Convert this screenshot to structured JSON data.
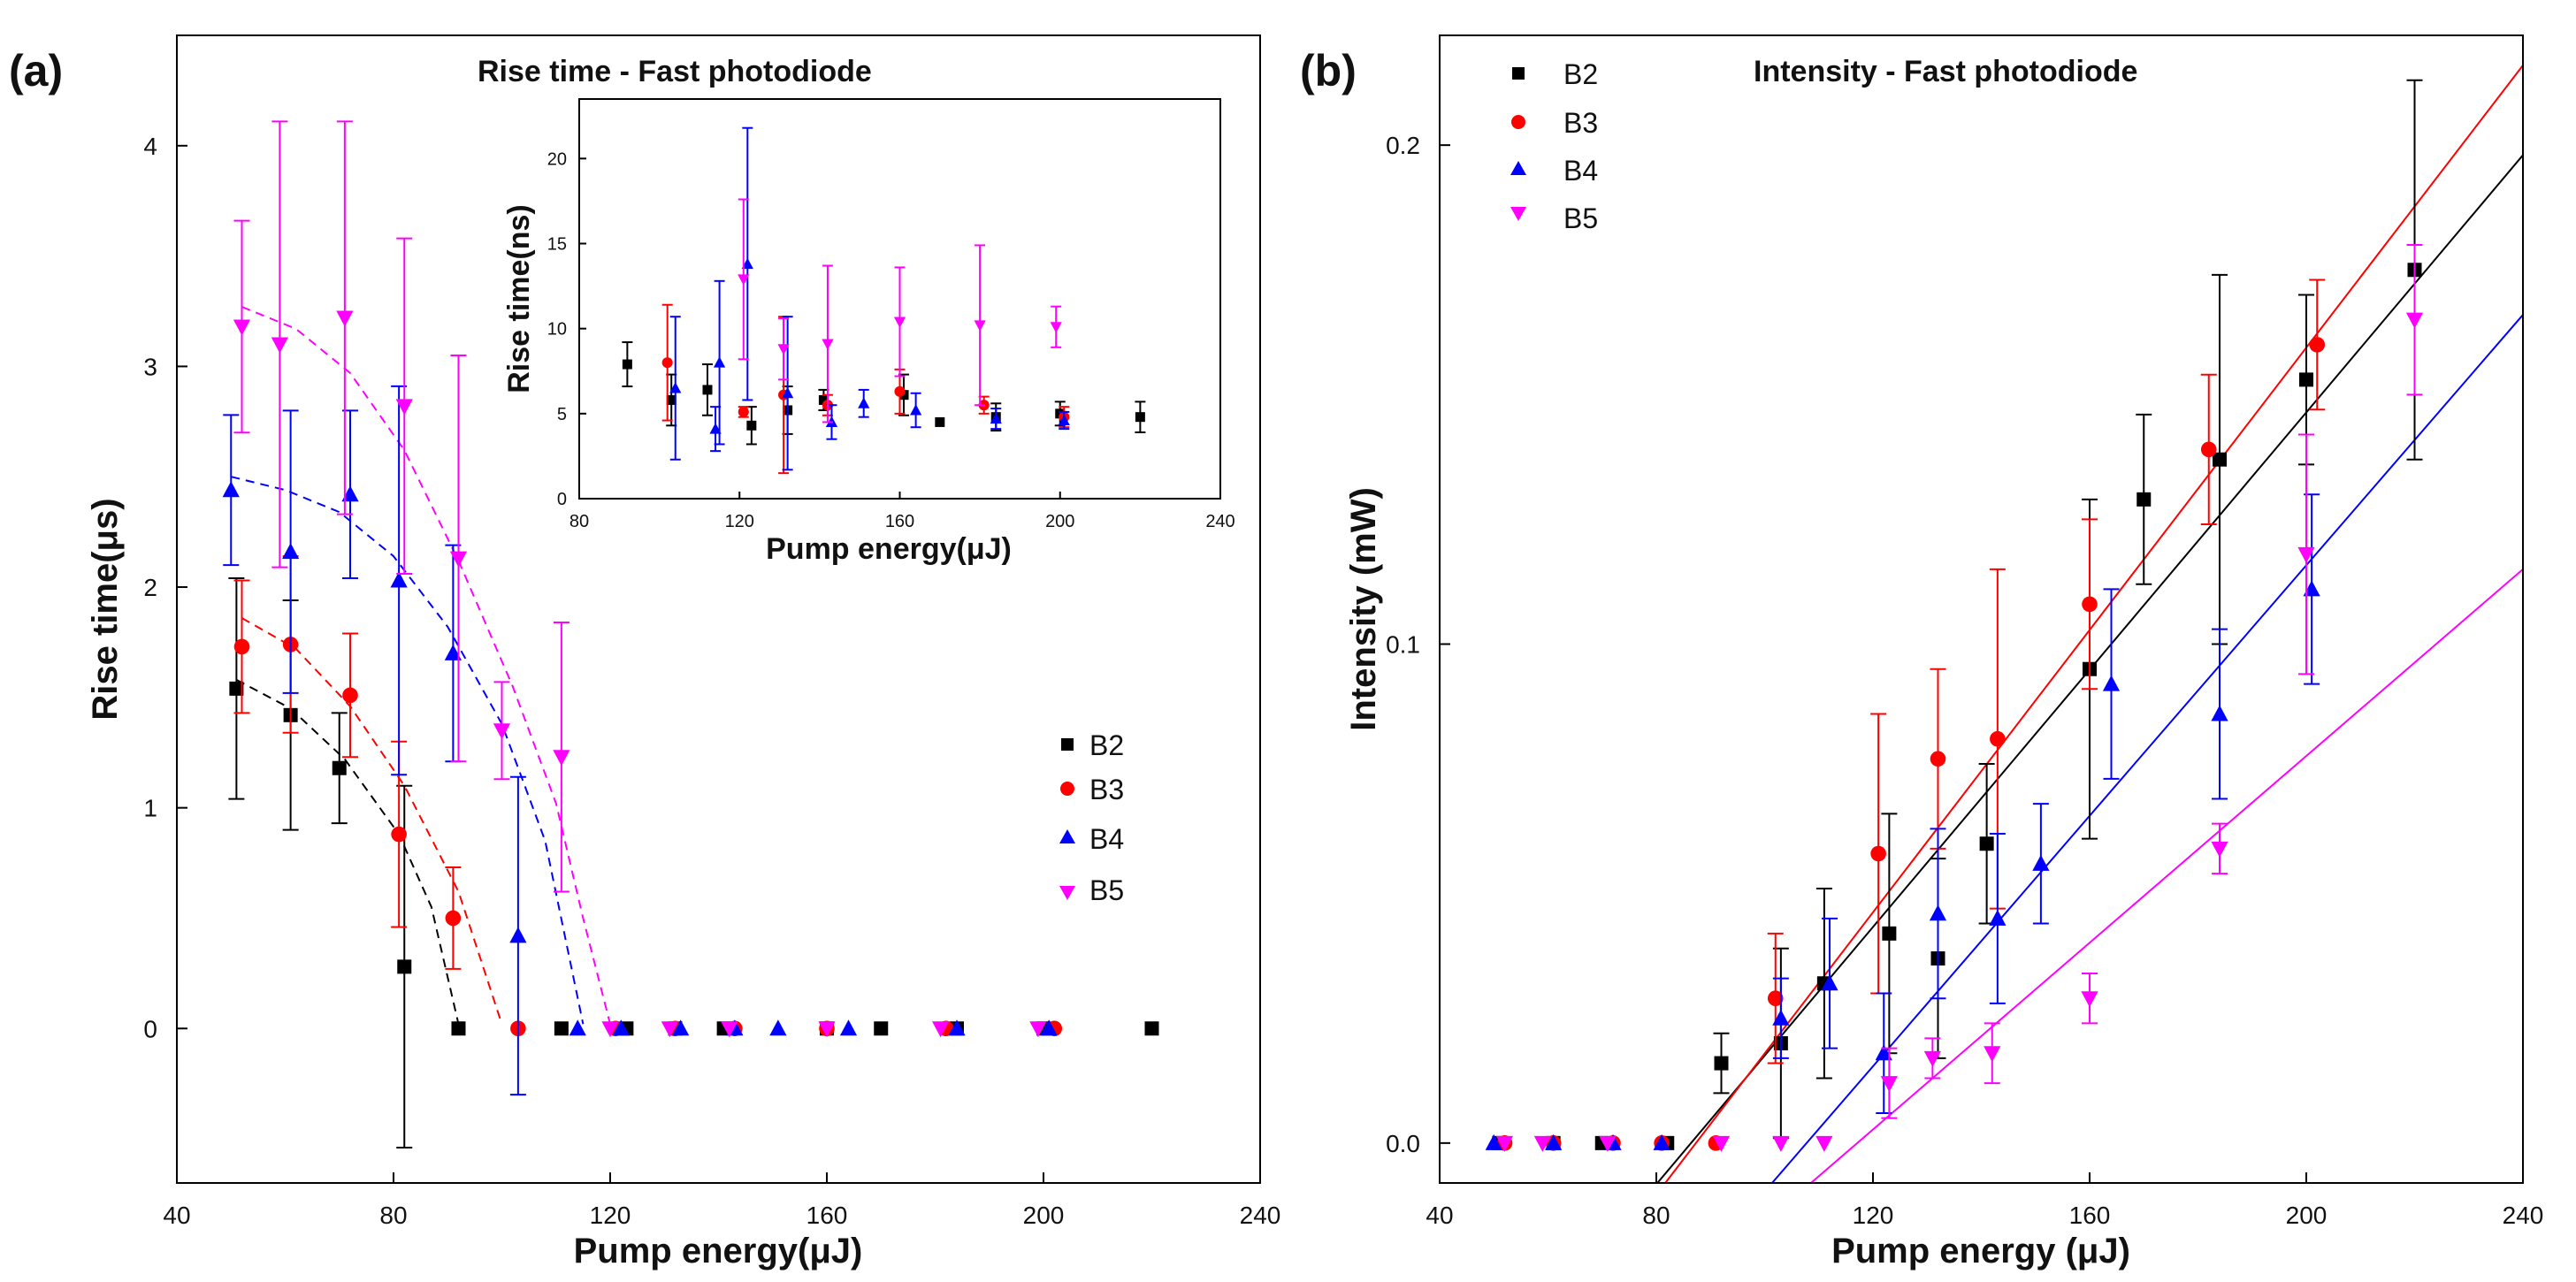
{
  "panels": {
    "a": {
      "label": "(a)"
    },
    "b": {
      "label": "(b)"
    }
  },
  "chart_data": [
    {
      "id": "a",
      "type": "scatter",
      "title": "Rise time - Fast photodiode",
      "xlabel": "Pump energy(μJ)",
      "ylabel": "Rise time(μs)",
      "xlim": [
        40,
        240
      ],
      "ylim": [
        -0.7,
        4.5
      ],
      "xticks": [
        40,
        80,
        120,
        160,
        200,
        240
      ],
      "yticks": [
        0,
        1,
        2,
        3,
        4
      ],
      "legend_position": "center-right",
      "series": [
        {
          "name": "B2",
          "color": "#000000",
          "marker": "square",
          "points": [
            [
              51,
              1.54,
              0.5
            ],
            [
              61,
              1.42,
              0.52
            ],
            [
              70,
              1.18,
              0.25
            ],
            [
              82,
              0.28,
              0.82
            ],
            [
              92,
              0,
              0
            ],
            [
              111,
              0,
              0
            ],
            [
              123,
              0,
              0
            ],
            [
              132,
              0,
              0
            ],
            [
              141,
              0,
              0
            ],
            [
              160,
              0,
              0
            ],
            [
              170,
              0,
              0
            ],
            [
              184,
              0,
              0
            ],
            [
              200,
              0,
              0
            ],
            [
              220,
              0,
              0
            ]
          ]
        },
        {
          "name": "B3",
          "color": "#ff0000",
          "marker": "circle",
          "points": [
            [
              52,
              1.73,
              0.3
            ],
            [
              61,
              1.74,
              0.4
            ],
            [
              72,
              1.51,
              0.28
            ],
            [
              81,
              0.88,
              0.42
            ],
            [
              91,
              0.5,
              0.23
            ],
            [
              103,
              0,
              0
            ],
            [
              121,
              0,
              0
            ],
            [
              132,
              0,
              0
            ],
            [
              143,
              0,
              0
            ],
            [
              160,
              0,
              0
            ],
            [
              182,
              0,
              0
            ],
            [
              202,
              0,
              0
            ]
          ]
        },
        {
          "name": "B4",
          "color": "#0000ff",
          "marker": "triangle-up",
          "points": [
            [
              50,
              2.44,
              0.34
            ],
            [
              61,
              2.16,
              0.64
            ],
            [
              72,
              2.42,
              0.38
            ],
            [
              81,
              2.03,
              0.88
            ],
            [
              91,
              1.7,
              0.49
            ],
            [
              103,
              0.42,
              0.72
            ],
            [
              114,
              0,
              0
            ],
            [
              122,
              0,
              0
            ],
            [
              133,
              0,
              0
            ],
            [
              143,
              0,
              0
            ],
            [
              151,
              0,
              0
            ],
            [
              164,
              0,
              0
            ],
            [
              184,
              0,
              0
            ],
            [
              201,
              0,
              0
            ]
          ]
        },
        {
          "name": "B5",
          "color": "#ff00ff",
          "marker": "triangle-down",
          "points": [
            [
              52,
              3.18,
              0.48
            ],
            [
              59,
              3.1,
              1.01
            ],
            [
              71,
              3.22,
              0.89
            ],
            [
              82,
              2.82,
              0.76
            ],
            [
              92,
              2.13,
              0.92
            ],
            [
              100,
              1.35,
              0.22
            ],
            [
              111,
              1.23,
              0.61
            ],
            [
              120,
              0,
              0
            ],
            [
              131,
              0,
              0
            ],
            [
              142,
              0,
              0
            ],
            [
              160,
              0,
              0
            ],
            [
              181,
              0,
              0
            ],
            [
              199,
              0,
              0
            ]
          ]
        }
      ],
      "fit_curves": [
        {
          "series": "B2",
          "points": [
            [
              51,
              1.58
            ],
            [
              61,
              1.45
            ],
            [
              71,
              1.22
            ],
            [
              81,
              0.88
            ],
            [
              87,
              0.55
            ],
            [
              92,
              0.02
            ]
          ]
        },
        {
          "series": "B3",
          "points": [
            [
              52,
              1.86
            ],
            [
              62,
              1.72
            ],
            [
              72,
              1.46
            ],
            [
              82,
              1.1
            ],
            [
              92,
              0.62
            ],
            [
              100,
              0.02
            ]
          ]
        },
        {
          "series": "B4",
          "points": [
            [
              50,
              2.5
            ],
            [
              60,
              2.44
            ],
            [
              70,
              2.34
            ],
            [
              80,
              2.14
            ],
            [
              90,
              1.82
            ],
            [
              100,
              1.38
            ],
            [
              108,
              0.85
            ],
            [
              115,
              0.02
            ]
          ]
        },
        {
          "series": "B5",
          "points": [
            [
              52,
              3.27
            ],
            [
              62,
              3.17
            ],
            [
              72,
              2.97
            ],
            [
              82,
              2.62
            ],
            [
              92,
              2.12
            ],
            [
              102,
              1.55
            ],
            [
              110,
              1.02
            ],
            [
              115,
              0.5
            ],
            [
              120,
              0.02
            ]
          ]
        }
      ],
      "inset": {
        "xlabel": "Pump energy(μJ)",
        "ylabel": "Rise time(ns)",
        "xlim": [
          80,
          240
        ],
        "ylim": [
          0,
          23.5
        ],
        "xticks": [
          80,
          120,
          160,
          200,
          240
        ],
        "yticks": [
          0,
          5,
          10,
          15,
          20
        ],
        "series": [
          {
            "name": "B2",
            "color": "#000000",
            "marker": "square",
            "points": [
              [
                92,
                7.9,
                1.3
              ],
              [
                103,
                5.8,
                1.5
              ],
              [
                112,
                6.4,
                1.5
              ],
              [
                123,
                4.3,
                1.1
              ],
              [
                132,
                5.2,
                1.4
              ],
              [
                141,
                5.8,
                0.6
              ],
              [
                161,
                6.1,
                1.2
              ],
              [
                170,
                4.5,
                0
              ],
              [
                184,
                4.8,
                0.8
              ],
              [
                200,
                5.0,
                0.7
              ],
              [
                220,
                4.8,
                0.9
              ]
            ]
          },
          {
            "name": "B3",
            "color": "#ff0000",
            "marker": "circle",
            "points": [
              [
                102,
                8.0,
                3.4
              ],
              [
                121,
                5.1,
                0.3
              ],
              [
                131,
                6.1,
                4.6
              ],
              [
                142,
                5.5,
                0.6
              ],
              [
                160,
                6.3,
                1.3
              ],
              [
                181,
                5.5,
                0.5
              ],
              [
                201,
                4.8,
                0.6
              ]
            ]
          },
          {
            "name": "B4",
            "color": "#0000ff",
            "marker": "triangle-up",
            "points": [
              [
                104,
                6.5,
                4.2
              ],
              [
                114,
                4.1,
                1.3
              ],
              [
                115,
                8.0,
                4.8
              ],
              [
                122,
                13.8,
                8.0
              ],
              [
                132,
                6.2,
                4.5
              ],
              [
                143,
                4.5,
                1.0
              ],
              [
                151,
                5.6,
                0.8
              ],
              [
                164,
                5.2,
                1.0
              ],
              [
                184,
                4.7,
                0.6
              ],
              [
                201,
                4.6,
                0.5
              ]
            ]
          },
          {
            "name": "B5",
            "color": "#ff00ff",
            "marker": "triangle-down",
            "points": [
              [
                121,
                12.9,
                4.7
              ],
              [
                131,
                8.8,
                1.8
              ],
              [
                142,
                9.1,
                4.6
              ],
              [
                160,
                10.4,
                3.2
              ],
              [
                180,
                10.2,
                4.7
              ],
              [
                199,
                10.1,
                1.2
              ]
            ]
          }
        ]
      }
    },
    {
      "id": "b",
      "type": "scatter",
      "title": "Intensity - Fast photodiode",
      "xlabel": "Pump energy (μJ)",
      "ylabel": "Intensity (mW)",
      "xlim": [
        40,
        240
      ],
      "ylim": [
        -0.008,
        0.222
      ],
      "xticks": [
        40,
        80,
        120,
        160,
        200,
        240
      ],
      "yticks": [
        0.0,
        0.1,
        0.2
      ],
      "ytick_labels": [
        "0.0",
        "0.1",
        "0.2"
      ],
      "legend_position": "top-left",
      "series": [
        {
          "name": "B2",
          "color": "#000000",
          "marker": "square",
          "points": [
            [
              51,
              0,
              0
            ],
            [
              61,
              0,
              0
            ],
            [
              70,
              0,
              0
            ],
            [
              82,
              0,
              0
            ],
            [
              92,
              0.016,
              0.006
            ],
            [
              103,
              0.02,
              0.019
            ],
            [
              111,
              0.032,
              0.019
            ],
            [
              123,
              0.042,
              0.024
            ],
            [
              132,
              0.037,
              0.02
            ],
            [
              141,
              0.06,
              0.016
            ],
            [
              160,
              0.095,
              0.034
            ],
            [
              170,
              0.129,
              0.017
            ],
            [
              184,
              0.137,
              0.037
            ],
            [
              200,
              0.153,
              0.017
            ],
            [
              220,
              0.175,
              0.038
            ]
          ]
        },
        {
          "name": "B3",
          "color": "#ff0000",
          "marker": "circle",
          "points": [
            [
              52,
              0,
              0
            ],
            [
              61,
              0,
              0
            ],
            [
              72,
              0,
              0
            ],
            [
              81,
              0,
              0
            ],
            [
              91,
              0,
              0
            ],
            [
              102,
              0.029,
              0.013
            ],
            [
              121,
              0.058,
              0.028
            ],
            [
              132,
              0.077,
              0.018
            ],
            [
              143,
              0.081,
              0.034
            ],
            [
              160,
              0.108,
              0.017
            ],
            [
              182,
              0.139,
              0.015
            ],
            [
              202,
              0.16,
              0.013
            ]
          ]
        },
        {
          "name": "B4",
          "color": "#0000ff",
          "marker": "triangle-up",
          "points": [
            [
              50,
              0,
              0
            ],
            [
              61,
              0,
              0
            ],
            [
              72,
              0,
              0
            ],
            [
              81,
              0,
              0
            ],
            [
              103,
              0.025,
              0.008
            ],
            [
              112,
              0.032,
              0.013
            ],
            [
              122,
              0.018,
              0.012
            ],
            [
              132,
              0.046,
              0.017
            ],
            [
              143,
              0.045,
              0.017
            ],
            [
              151,
              0.056,
              0.012
            ],
            [
              164,
              0.092,
              0.019
            ],
            [
              184,
              0.086,
              0.017
            ],
            [
              201,
              0.111,
              0.019
            ]
          ]
        },
        {
          "name": "B5",
          "color": "#ff00ff",
          "marker": "triangle-down",
          "points": [
            [
              52,
              0,
              0
            ],
            [
              59,
              0,
              0
            ],
            [
              71,
              0,
              0
            ],
            [
              92,
              0,
              0
            ],
            [
              103,
              0,
              0
            ],
            [
              111,
              0,
              0
            ],
            [
              123,
              0.012,
              0.007
            ],
            [
              131,
              0.017,
              0.004
            ],
            [
              142,
              0.018,
              0.006
            ],
            [
              160,
              0.029,
              0.005
            ],
            [
              184,
              0.059,
              0.005
            ],
            [
              200,
              0.118,
              0.024
            ],
            [
              220,
              0.165,
              0.015
            ]
          ]
        }
      ],
      "fit_lines": [
        {
          "series": "B2",
          "x": [
            74,
            240
          ],
          "y": [
            -0.016,
            0.198
          ]
        },
        {
          "series": "B3",
          "x": [
            76,
            240
          ],
          "y": [
            -0.016,
            0.216
          ]
        },
        {
          "series": "B4",
          "x": [
            95,
            240
          ],
          "y": [
            -0.016,
            0.166
          ]
        },
        {
          "series": "B5",
          "x": [
            100,
            240
          ],
          "y": [
            -0.016,
            0.115
          ]
        }
      ]
    }
  ]
}
